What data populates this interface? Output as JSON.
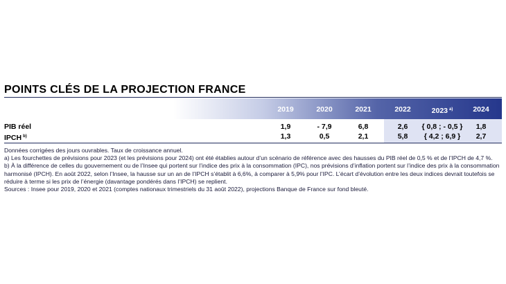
{
  "title": "POINTS CLÉS DE LA PROJECTION FRANCE",
  "table": {
    "years": [
      {
        "label": "2019",
        "note": ""
      },
      {
        "label": "2020",
        "note": ""
      },
      {
        "label": "2021",
        "note": ""
      },
      {
        "label": "2022",
        "note": ""
      },
      {
        "label": "2023",
        "note": "a)"
      },
      {
        "label": "2024",
        "note": ""
      }
    ],
    "rows": [
      {
        "label": "PIB réel",
        "label_note": "",
        "values": [
          "1,9",
          "- 7,9",
          "6,8",
          "2,6",
          "{ 0,8 ; - 0,5 }",
          "1,8"
        ]
      },
      {
        "label": "IPCH",
        "label_note": "b)",
        "values": [
          "1,3",
          "0,5",
          "2,1",
          "5,8",
          "{ 4,2 ; 6,9 }",
          "2,7"
        ]
      }
    ]
  },
  "notes": [
    "Données corrigées des jours ouvrables. Taux de croissance annuel.",
    "a)  Les fourchettes de prévisions pour 2023 (et les prévisions pour 2024) ont été établies autour d’un scénario de référence avec des hausses du PIB réel de 0,5 % et de l’IPCH de 4,7 %.",
    "b)  À la différence de celles du gouvernement ou de l’Insee qui portent sur l’indice des prix à la consommation (IPC), nos prévisions d’inflation portent sur l’indice des prix à la consommation harmonisé (IPCH). En août 2022, selon l’Insee, la hausse sur un an de l’IPCH s’établit à 6,6%, à comparer à 5,9% pour l’IPC. L’écart d’évolution entre les deux indices devrait toutefois se réduire à terme si les prix de l’énergie (davantage pondérés dans l’IPCH) se replient.",
    "Sources : Insee pour 2019, 2020 et 2021 (comptes nationaux trimestriels du 31 août 2022), projections Banque de France sur fond bleuté."
  ],
  "colors": {
    "header_dark": "#25378c",
    "projection_shade": "#dfe3f3",
    "rule": "#1f2a5c"
  }
}
